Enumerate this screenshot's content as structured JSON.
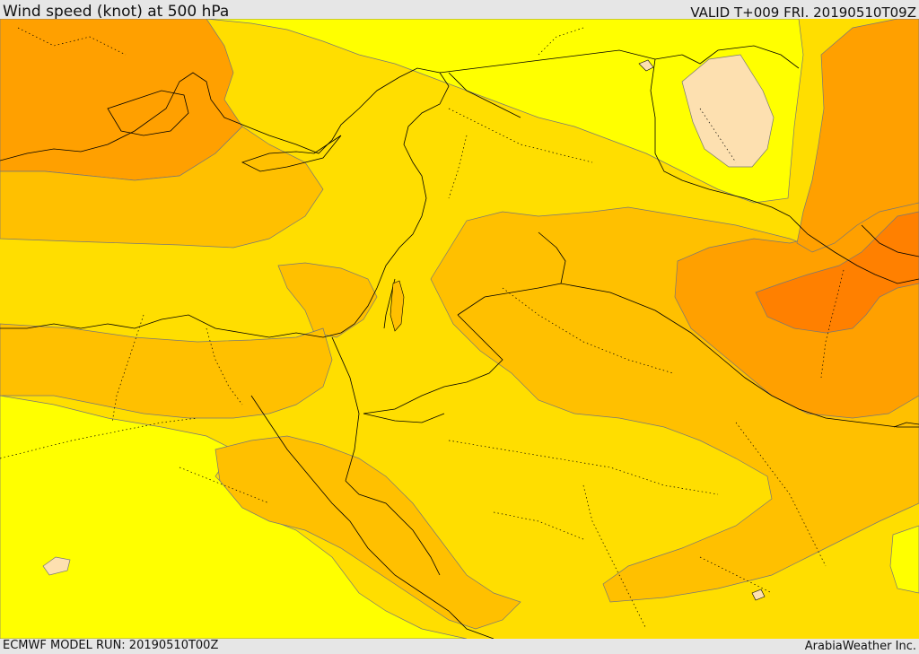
{
  "header": {
    "title": "Wind speed (knot) at 500 hPa",
    "valid_time": "VALID T+009 FRI. 20190510T09Z"
  },
  "footer": {
    "model_run": "ECMWF MODEL RUN: 20190510T00Z",
    "credit": "ArabiaWeather Inc."
  },
  "map": {
    "colors": {
      "band_lowest": "#fde0b0",
      "band_low": "#ffff00",
      "band_mid_low": "#ffde00",
      "band_mid": "#ffc000",
      "band_mid_high": "#ffa000",
      "band_high": "#ff8000",
      "coastline": "#000000",
      "contour_line": "#777777"
    }
  }
}
